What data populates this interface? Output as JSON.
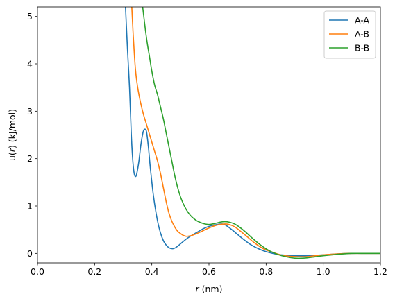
{
  "chart_data": {
    "type": "line",
    "title": "",
    "xlabel": {
      "var": "r",
      "unit": " (nm)"
    },
    "ylabel": {
      "pre": "u(",
      "var": "r",
      "post": ") (kJ/mol)"
    },
    "xlim": [
      0.0,
      1.2
    ],
    "ylim": [
      -0.2,
      5.2
    ],
    "xticks": [
      0.0,
      0.2,
      0.4,
      0.6,
      0.8,
      1.0,
      1.2
    ],
    "xtick_labels": [
      "0.0",
      "0.2",
      "0.4",
      "0.6",
      "0.8",
      "1.0",
      "1.2"
    ],
    "yticks": [
      0,
      1,
      2,
      3,
      4,
      5
    ],
    "ytick_labels": [
      "0",
      "1",
      "2",
      "3",
      "4",
      "5"
    ],
    "grid": false,
    "legend_position": "top-right",
    "series": [
      {
        "name": "A-A",
        "color": "#1f77b4",
        "x": [
          0.308,
          0.315,
          0.322,
          0.328,
          0.333,
          0.338,
          0.343,
          0.348,
          0.355,
          0.362,
          0.37,
          0.377,
          0.382,
          0.388,
          0.395,
          0.405,
          0.415,
          0.425,
          0.435,
          0.445,
          0.46,
          0.475,
          0.488,
          0.5,
          0.52,
          0.54,
          0.56,
          0.58,
          0.6,
          0.62,
          0.645,
          0.66,
          0.68,
          0.7,
          0.72,
          0.75,
          0.78,
          0.81,
          0.84,
          0.87,
          0.9,
          0.93,
          0.96,
          1.0,
          1.05,
          1.1,
          1.15,
          1.2
        ],
        "y": [
          5.2,
          4.3,
          3.5,
          2.55,
          2.0,
          1.7,
          1.62,
          1.7,
          1.95,
          2.3,
          2.57,
          2.62,
          2.55,
          2.25,
          1.8,
          1.25,
          0.85,
          0.55,
          0.35,
          0.22,
          0.12,
          0.1,
          0.14,
          0.2,
          0.3,
          0.38,
          0.45,
          0.52,
          0.57,
          0.6,
          0.62,
          0.59,
          0.5,
          0.4,
          0.3,
          0.17,
          0.08,
          0.02,
          -0.02,
          -0.04,
          -0.05,
          -0.05,
          -0.04,
          -0.03,
          -0.01,
          0.0,
          0.0,
          0.0
        ]
      },
      {
        "name": "A-B",
        "color": "#ff7f0e",
        "x": [
          0.33,
          0.335,
          0.34,
          0.345,
          0.352,
          0.36,
          0.37,
          0.38,
          0.39,
          0.4,
          0.41,
          0.42,
          0.43,
          0.44,
          0.45,
          0.46,
          0.47,
          0.48,
          0.49,
          0.5,
          0.51,
          0.52,
          0.535,
          0.55,
          0.57,
          0.59,
          0.61,
          0.63,
          0.655,
          0.67,
          0.69,
          0.71,
          0.73,
          0.76,
          0.79,
          0.82,
          0.85,
          0.88,
          0.91,
          0.94,
          0.97,
          1.0,
          1.05,
          1.1,
          1.15,
          1.2
        ],
        "y": [
          5.2,
          4.6,
          4.1,
          3.75,
          3.45,
          3.2,
          2.95,
          2.75,
          2.55,
          2.35,
          2.15,
          1.95,
          1.7,
          1.4,
          1.1,
          0.85,
          0.68,
          0.56,
          0.47,
          0.42,
          0.38,
          0.36,
          0.37,
          0.4,
          0.45,
          0.51,
          0.56,
          0.6,
          0.62,
          0.61,
          0.56,
          0.47,
          0.37,
          0.22,
          0.1,
          0.03,
          -0.03,
          -0.06,
          -0.07,
          -0.07,
          -0.05,
          -0.03,
          -0.01,
          0.0,
          0.0,
          0.0
        ]
      },
      {
        "name": "B-B",
        "color": "#2ca02c",
        "x": [
          0.368,
          0.372,
          0.378,
          0.385,
          0.392,
          0.4,
          0.41,
          0.42,
          0.43,
          0.44,
          0.45,
          0.46,
          0.47,
          0.48,
          0.49,
          0.5,
          0.51,
          0.52,
          0.53,
          0.54,
          0.55,
          0.56,
          0.58,
          0.6,
          0.62,
          0.64,
          0.655,
          0.67,
          0.69,
          0.71,
          0.73,
          0.75,
          0.78,
          0.81,
          0.84,
          0.87,
          0.9,
          0.93,
          0.96,
          1.0,
          1.05,
          1.1,
          1.15,
          1.2
        ],
        "y": [
          5.2,
          5.0,
          4.7,
          4.4,
          4.15,
          3.85,
          3.55,
          3.35,
          3.1,
          2.85,
          2.55,
          2.25,
          1.95,
          1.65,
          1.4,
          1.2,
          1.05,
          0.93,
          0.84,
          0.77,
          0.72,
          0.68,
          0.63,
          0.61,
          0.63,
          0.66,
          0.67,
          0.66,
          0.62,
          0.54,
          0.44,
          0.33,
          0.18,
          0.06,
          -0.02,
          -0.07,
          -0.1,
          -0.1,
          -0.08,
          -0.05,
          -0.02,
          0.0,
          0.0,
          0.0
        ]
      }
    ]
  }
}
